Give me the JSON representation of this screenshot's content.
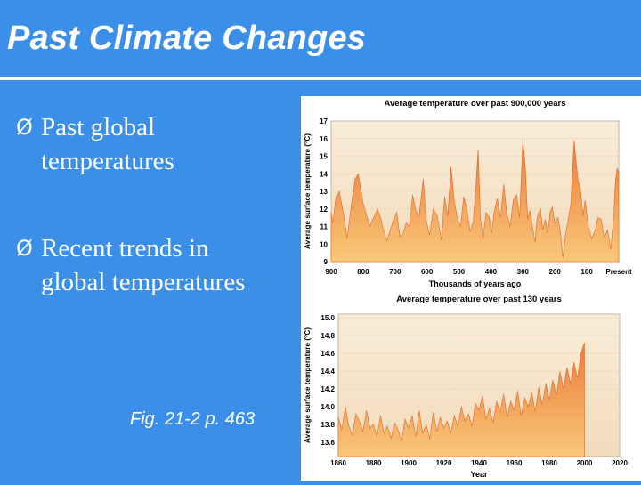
{
  "slide": {
    "title": "Past Climate Changes",
    "bullets": [
      {
        "marker": "Ø",
        "lines": [
          "Past global",
          "temperatures"
        ]
      },
      {
        "marker": "Ø",
        "lines": [
          "Recent trends in",
          "global temperatures"
        ]
      }
    ],
    "caption": "Fig. 21-2 p. 463"
  },
  "chart_data": [
    {
      "type": "area",
      "title": "Average temperature over past 900,000 years",
      "xlabel": "Thousands of years ago",
      "ylabel": "Average surface temperature (°C)",
      "x_ticks": [
        "900",
        "800",
        "700",
        "600",
        "500",
        "400",
        "300",
        "200",
        "100",
        "Present"
      ],
      "y_ticks": [
        "9",
        "10",
        "11",
        "12",
        "13",
        "14",
        "15",
        "16",
        "17"
      ],
      "xlim": [
        900,
        0
      ],
      "ylim": [
        9,
        17
      ],
      "fill_colors": [
        "#f4d9b3",
        "#ec7a38"
      ],
      "x": [
        900,
        895,
        885,
        875,
        860,
        850,
        835,
        825,
        815,
        800,
        790,
        780,
        770,
        755,
        745,
        735,
        725,
        715,
        705,
        695,
        685,
        675,
        665,
        655,
        645,
        635,
        625,
        612,
        602,
        592,
        580,
        568,
        555,
        545,
        535,
        525,
        515,
        505,
        495,
        485,
        475,
        465,
        455,
        447,
        440,
        433,
        425,
        415,
        405,
        398,
        390,
        380,
        370,
        360,
        350,
        340,
        330,
        320,
        310,
        300,
        292,
        285,
        278,
        270,
        262,
        255,
        245,
        238,
        230,
        222,
        215,
        208,
        200,
        190,
        182,
        175,
        167,
        160,
        150,
        140,
        133,
        127,
        120,
        112,
        105,
        95,
        85,
        75,
        65,
        55,
        45,
        35,
        25,
        15,
        10,
        5,
        0
      ],
      "values": [
        11.8,
        11.2,
        12.7,
        13.0,
        11.6,
        10.3,
        12.5,
        13.7,
        14.0,
        12.3,
        11.7,
        11.0,
        11.4,
        12.0,
        11.5,
        10.7,
        10.2,
        10.8,
        11.4,
        11.8,
        10.4,
        10.6,
        11.2,
        11.0,
        12.8,
        11.9,
        11.6,
        13.7,
        11.3,
        10.5,
        12.0,
        11.6,
        10.2,
        12.7,
        11.6,
        14.4,
        12.5,
        11.4,
        11.0,
        12.7,
        12.0,
        10.7,
        11.3,
        13.4,
        15.4,
        11.5,
        10.3,
        11.8,
        11.5,
        10.6,
        11.8,
        12.6,
        11.5,
        13.4,
        11.7,
        11.0,
        12.5,
        12.8,
        11.5,
        16.0,
        14.3,
        11.4,
        11.9,
        11.0,
        10.1,
        11.6,
        12.0,
        10.8,
        11.4,
        10.6,
        11.8,
        12.1,
        11.2,
        11.5,
        10.6,
        9.2,
        10.5,
        11.2,
        12.3,
        15.9,
        14.6,
        13.6,
        13.2,
        11.6,
        12.5,
        11.0,
        10.3,
        10.7,
        11.5,
        11.4,
        10.4,
        10.8,
        9.7,
        11.8,
        13.7,
        14.3,
        14.1
      ]
    },
    {
      "type": "area",
      "title": "Average temperature over past 130 years",
      "xlabel": "Year",
      "ylabel": "Average surface temperature (°C)",
      "x_ticks": [
        "1860",
        "1880",
        "1900",
        "1920",
        "1940",
        "1960",
        "1980",
        "2000",
        "2020"
      ],
      "y_ticks": [
        "13.6",
        "13.8",
        "14.0",
        "14.2",
        "14.4",
        "14.6",
        "14.8",
        "15.0"
      ],
      "xlim": [
        1860,
        2020
      ],
      "ylim": [
        13.44,
        15.04
      ],
      "fill_colors": [
        "#f4d9b3",
        "#ec7a38"
      ],
      "x": [
        1860,
        1862,
        1864,
        1866,
        1868,
        1870,
        1872,
        1874,
        1876,
        1878,
        1880,
        1882,
        1884,
        1886,
        1888,
        1890,
        1892,
        1894,
        1896,
        1898,
        1900,
        1902,
        1904,
        1906,
        1908,
        1910,
        1912,
        1914,
        1916,
        1918,
        1920,
        1922,
        1924,
        1926,
        1928,
        1930,
        1932,
        1934,
        1936,
        1938,
        1940,
        1942,
        1944,
        1946,
        1948,
        1950,
        1952,
        1954,
        1956,
        1958,
        1960,
        1962,
        1964,
        1966,
        1968,
        1970,
        1972,
        1974,
        1976,
        1978,
        1980,
        1982,
        1984,
        1986,
        1988,
        1990,
        1992,
        1994,
        1996,
        1998,
        2000
      ],
      "values": [
        13.88,
        13.74,
        14.0,
        13.78,
        13.68,
        13.92,
        13.84,
        13.72,
        13.96,
        13.76,
        13.8,
        13.66,
        13.9,
        13.7,
        13.78,
        13.64,
        13.82,
        13.74,
        13.62,
        13.86,
        13.76,
        13.9,
        13.66,
        13.96,
        13.7,
        13.8,
        13.64,
        13.94,
        13.72,
        13.88,
        13.76,
        13.84,
        13.7,
        13.9,
        13.78,
        14.0,
        13.84,
        13.92,
        13.78,
        14.04,
        13.96,
        14.12,
        13.86,
        13.98,
        13.82,
        14.06,
        13.94,
        14.14,
        13.88,
        14.06,
        13.96,
        14.18,
        13.9,
        14.1,
        14.0,
        14.16,
        13.94,
        14.22,
        14.02,
        14.26,
        14.08,
        14.3,
        14.12,
        14.4,
        14.2,
        14.44,
        14.26,
        14.5,
        14.32,
        14.6,
        14.72
      ]
    }
  ]
}
